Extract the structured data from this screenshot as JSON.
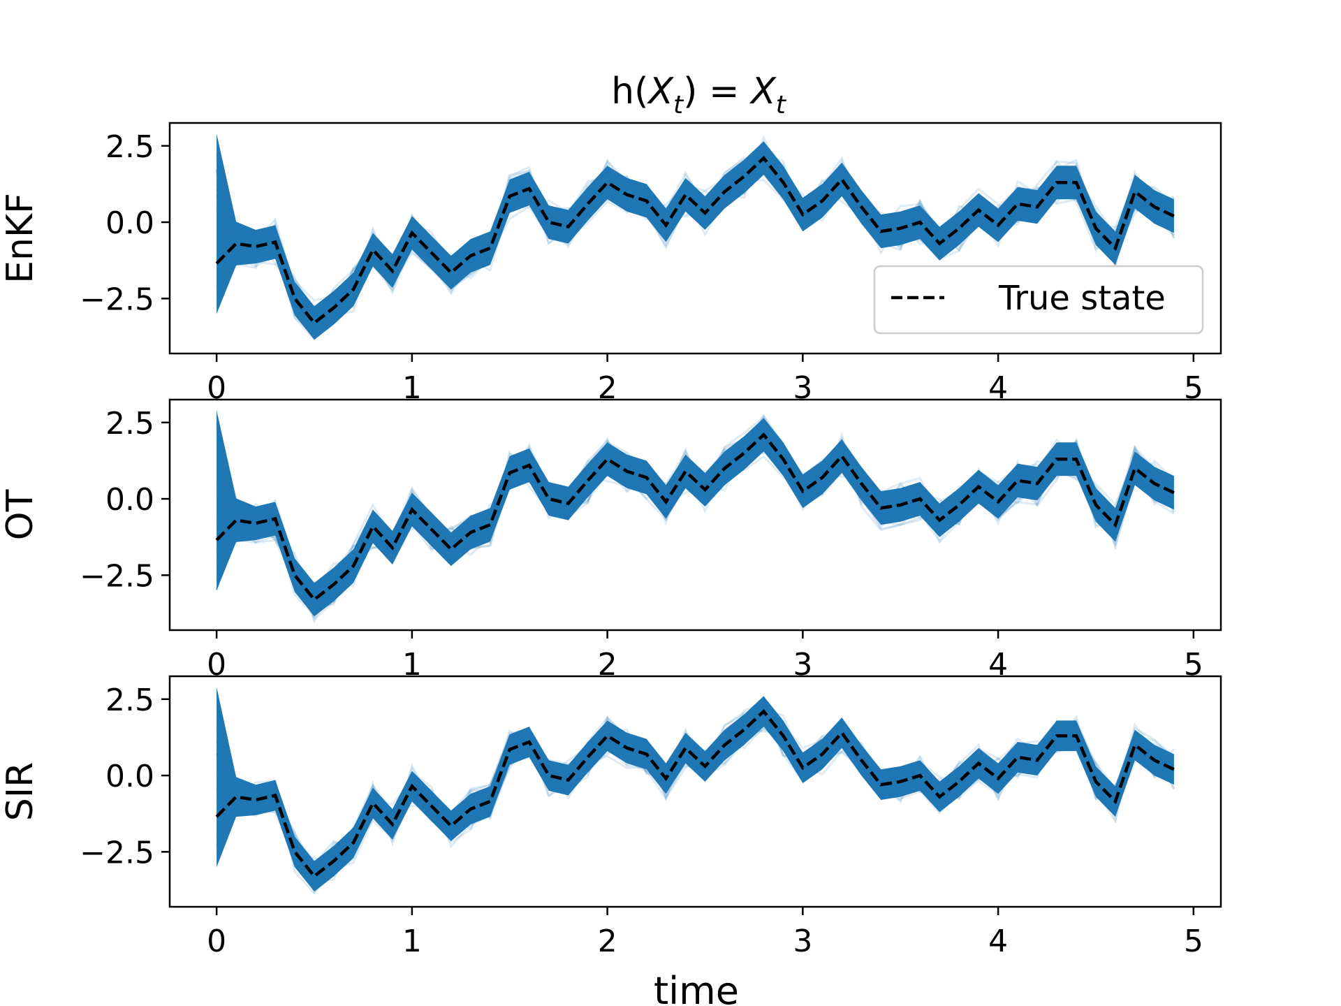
{
  "chart_data": {
    "type": "line",
    "title": "h(X_t) = X_t",
    "title_parts": {
      "h": "h(",
      "X": "X",
      "t": "t",
      "close": ")",
      "eq": " = ",
      "X2": "X",
      "t2": "t"
    },
    "xlabel": "time",
    "xlim": [
      -0.24,
      5.14
    ],
    "ylim": [
      -4.3,
      3.25
    ],
    "xticks": [
      0,
      1,
      2,
      3,
      4,
      5
    ],
    "xtick_labels": [
      "0",
      "1",
      "2",
      "3",
      "4",
      "5"
    ],
    "yticks": [
      2.5,
      0.0,
      -2.5
    ],
    "ytick_labels": [
      "2.5",
      "0.0",
      "−2.5"
    ],
    "grid": false,
    "legend": {
      "position": "lower-right",
      "entries": [
        "True state"
      ]
    },
    "colors": {
      "ensemble": "#1f77b4",
      "true_state": "#000000"
    },
    "x": [
      0.0,
      0.1,
      0.2,
      0.3,
      0.4,
      0.5,
      0.6,
      0.7,
      0.8,
      0.9,
      1.0,
      1.1,
      1.2,
      1.3,
      1.4,
      1.5,
      1.6,
      1.7,
      1.8,
      1.9,
      2.0,
      2.1,
      2.2,
      2.3,
      2.4,
      2.5,
      2.6,
      2.7,
      2.8,
      2.9,
      3.0,
      3.1,
      3.2,
      3.3,
      3.4,
      3.5,
      3.6,
      3.7,
      3.8,
      3.9,
      4.0,
      4.1,
      4.2,
      4.3,
      4.4,
      4.5,
      4.6,
      4.7,
      4.8,
      4.9
    ],
    "true_state": [
      -1.35,
      -0.7,
      -0.8,
      -0.65,
      -2.5,
      -3.3,
      -2.8,
      -2.2,
      -0.9,
      -1.6,
      -0.35,
      -1.0,
      -1.65,
      -1.1,
      -0.85,
      0.85,
      1.1,
      0.0,
      -0.15,
      0.6,
      1.3,
      0.9,
      0.7,
      -0.1,
      0.9,
      0.3,
      1.0,
      1.5,
      2.1,
      1.3,
      0.25,
      0.7,
      1.4,
      0.5,
      -0.3,
      -0.2,
      0.0,
      -0.7,
      -0.2,
      0.4,
      -0.1,
      0.6,
      0.5,
      1.3,
      1.3,
      -0.2,
      -0.85,
      1.0,
      0.5,
      0.2
    ],
    "panels": [
      {
        "name": "EnKF",
        "ensemble_halfwidth": 0.55,
        "initial_spread": [
          -3.0,
          2.9
        ]
      },
      {
        "name": "OT",
        "ensemble_halfwidth": 0.55,
        "initial_spread": [
          -3.0,
          2.9
        ]
      },
      {
        "name": "SIR",
        "ensemble_halfwidth": 0.5,
        "initial_spread": [
          -3.0,
          2.9
        ]
      }
    ]
  }
}
